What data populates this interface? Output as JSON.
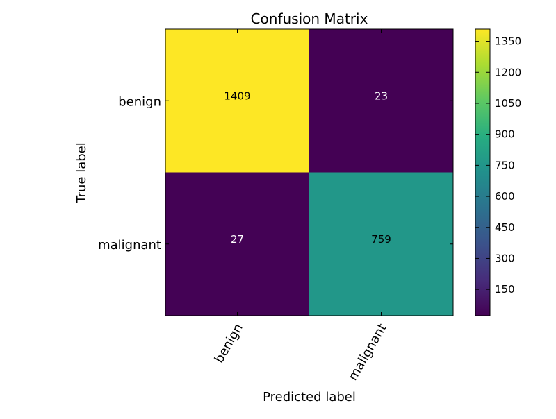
{
  "chart_data": {
    "type": "heatmap",
    "title": "Confusion Matrix",
    "xlabel": "Predicted label",
    "ylabel": "True label",
    "x_categories": [
      "benign",
      "malignant"
    ],
    "y_categories": [
      "benign",
      "malignant"
    ],
    "values": [
      [
        1409,
        23
      ],
      [
        27,
        759
      ]
    ],
    "colormap": "viridis",
    "colorbar": {
      "min": 23,
      "max": 1409,
      "ticks": [
        150,
        300,
        450,
        600,
        750,
        900,
        1050,
        1200,
        1350
      ]
    },
    "grid": false
  }
}
